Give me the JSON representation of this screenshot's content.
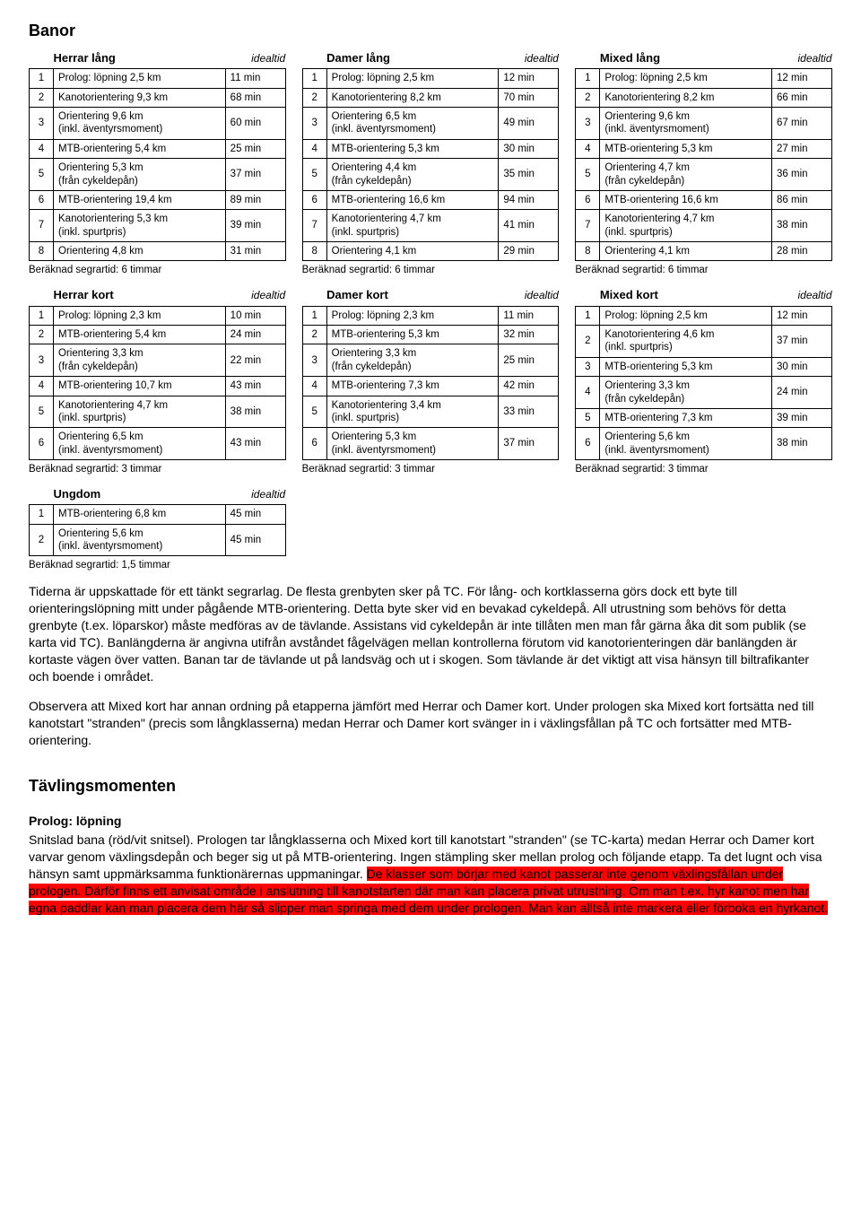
{
  "headings": {
    "banor": "Banor",
    "tavlingsmomenten": "Tävlingsmomenten",
    "prolog": "Prolog: löpning"
  },
  "idealtid_label": "idealtid",
  "footer6": "Beräknad segrartid: 6 timmar",
  "footer3": "Beräknad segrartid: 3 timmar",
  "footer15": "Beräknad segrartid: 1,5 timmar",
  "long": [
    {
      "title": "Herrar lång",
      "rows": [
        [
          "1",
          "Prolog: löpning 2,5 km",
          "11 min"
        ],
        [
          "2",
          "Kanotorientering 9,3 km",
          "68 min"
        ],
        [
          "3",
          "Orientering 9,6 km\n(inkl. äventyrsmoment)",
          "60 min"
        ],
        [
          "4",
          "MTB-orientering 5,4 km",
          "25 min"
        ],
        [
          "5",
          "Orientering 5,3 km\n(från cykeldepån)",
          "37 min"
        ],
        [
          "6",
          "MTB-orientering 19,4 km",
          "89 min"
        ],
        [
          "7",
          "Kanotorientering 5,3 km\n(inkl. spurtpris)",
          "39 min"
        ],
        [
          "8",
          "Orientering 4,8 km",
          "31 min"
        ]
      ]
    },
    {
      "title": "Damer lång",
      "rows": [
        [
          "1",
          "Prolog: löpning 2,5 km",
          "12 min"
        ],
        [
          "2",
          "Kanotorientering 8,2 km",
          "70 min"
        ],
        [
          "3",
          "Orientering 6,5 km\n(inkl. äventyrsmoment)",
          "49 min"
        ],
        [
          "4",
          "MTB-orientering 5,3 km",
          "30 min"
        ],
        [
          "5",
          "Orientering 4,4 km\n(från cykeldepån)",
          "35 min"
        ],
        [
          "6",
          "MTB-orientering 16,6 km",
          "94 min"
        ],
        [
          "7",
          "Kanotorientering 4,7 km\n(inkl. spurtpris)",
          "41 min"
        ],
        [
          "8",
          "Orientering 4,1 km",
          "29 min"
        ]
      ]
    },
    {
      "title": "Mixed lång",
      "rows": [
        [
          "1",
          "Prolog: löpning 2,5 km",
          "12 min"
        ],
        [
          "2",
          "Kanotorientering 8,2 km",
          "66 min"
        ],
        [
          "3",
          "Orientering 9,6 km\n(inkl. äventyrsmoment)",
          "67 min"
        ],
        [
          "4",
          "MTB-orientering 5,3 km",
          "27 min"
        ],
        [
          "5",
          "Orientering 4,7 km\n(från cykeldepån)",
          "36 min"
        ],
        [
          "6",
          "MTB-orientering 16,6 km",
          "86 min"
        ],
        [
          "7",
          "Kanotorientering 4,7 km\n(inkl. spurtpris)",
          "38 min"
        ],
        [
          "8",
          "Orientering 4,1 km",
          "28 min"
        ]
      ]
    }
  ],
  "short": [
    {
      "title": "Herrar kort",
      "rows": [
        [
          "1",
          "Prolog: löpning 2,3 km",
          "10 min"
        ],
        [
          "2",
          "MTB-orientering 5,4 km",
          "24 min"
        ],
        [
          "3",
          "Orientering 3,3 km\n(från cykeldepån)",
          "22 min"
        ],
        [
          "4",
          "MTB-orientering 10,7 km",
          "43 min"
        ],
        [
          "5",
          "Kanotorientering 4,7 km\n(inkl. spurtpris)",
          "38 min"
        ],
        [
          "6",
          "Orientering 6,5 km\n(inkl. äventyrsmoment)",
          "43 min"
        ]
      ]
    },
    {
      "title": "Damer kort",
      "rows": [
        [
          "1",
          "Prolog: löpning 2,3 km",
          "11 min"
        ],
        [
          "2",
          "MTB-orientering 5,3 km",
          "32 min"
        ],
        [
          "3",
          "Orientering 3,3 km\n(från cykeldepån)",
          "25 min"
        ],
        [
          "4",
          "MTB-orientering 7,3 km",
          "42 min"
        ],
        [
          "5",
          "Kanotorientering 3,4 km\n(inkl. spurtpris)",
          "33 min"
        ],
        [
          "6",
          "Orientering 5,3 km\n(inkl. äventyrsmoment)",
          "37 min"
        ]
      ]
    },
    {
      "title": "Mixed kort",
      "rows": [
        [
          "1",
          "Prolog: löpning 2,5 km",
          "12 min"
        ],
        [
          "2",
          "Kanotorientering 4,6 km\n(inkl. spurtpris)",
          "37 min"
        ],
        [
          "3",
          "MTB-orientering 5,3 km",
          "30 min"
        ],
        [
          "4",
          "Orientering 3,3 km\n(från cykeldepån)",
          "24 min"
        ],
        [
          "5",
          "MTB-orientering 7,3 km",
          "39 min"
        ],
        [
          "6",
          "Orientering 5,6 km\n(inkl. äventyrsmoment)",
          "38 min"
        ]
      ]
    }
  ],
  "ungdom": {
    "title": "Ungdom",
    "rows": [
      [
        "1",
        "MTB-orientering 6,8 km",
        "45 min"
      ],
      [
        "2",
        "Orientering 5,6 km\n(inkl. äventyrsmoment)",
        "45 min"
      ]
    ]
  },
  "para1": "Tiderna är uppskattade för ett tänkt segrarlag. De flesta grenbyten sker på TC. För lång- och kortklasserna görs dock ett byte till orienteringslöpning mitt under pågående MTB-orientering. Detta byte sker vid en bevakad cykeldepå. All utrustning som behövs för detta grenbyte (t.ex. löparskor) måste medföras av de tävlande. Assistans vid cykeldepån är inte tillåten men man får gärna åka dit som publik (se karta vid TC). Banlängderna är angivna utifrån avståndet fågelvägen mellan kontrollerna förutom vid kanotorienteringen där banlängden är kortaste vägen över vatten. Banan tar de tävlande ut på landsväg och ut i skogen. Som tävlande är det viktigt att visa hänsyn till biltrafikanter och boende i området.",
  "para2": "Observera att Mixed kort har annan ordning på etapperna jämfört med Herrar och Damer kort. Under prologen ska Mixed kort fortsätta ned till kanotstart \"stranden\" (precis som långklasserna) medan Herrar och Damer kort svänger in i växlingsfållan på TC och fortsätter med MTB-orientering.",
  "prolog_pre": "Snitslad bana (röd/vit snitsel). Prologen tar långklasserna och Mixed kort till kanotstart \"stranden\" (se TC-karta) medan Herrar och Damer kort varvar genom växlingsdepån och beger sig ut på MTB-orientering. Ingen stämpling sker mellan prolog och följande etapp. Ta det lugnt och visa hänsyn samt uppmärksamma funktionärernas uppmaningar. ",
  "prolog_hl": "De klasser som börjar med kanot passerar inte genom växlingsfållan under prologen. Därför finns ett anvisat område i anslutning till kanotstarten där man kan placera privat utrustning. Om man t.ex. hyr kanot men har egna paddlar kan man placera dem här så slipper man springa med dem under prologen. Man kan alltså inte markera eller förboka en hyrkanot."
}
